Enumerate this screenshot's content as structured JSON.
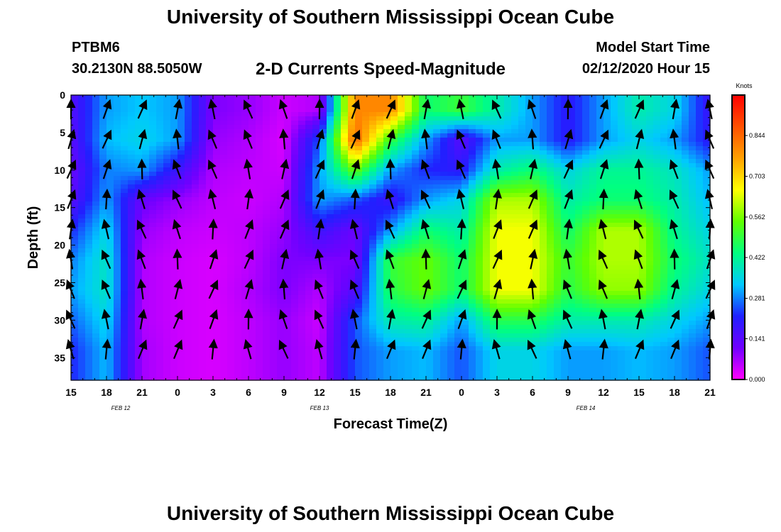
{
  "header": {
    "title": "University of Southern Mississippi Ocean Cube",
    "station_id": "PTBM6",
    "station_coords": "30.2130N 88.5050W",
    "subtitle": "2-D Currents Speed-Magnitude",
    "model_label": "Model Start Time",
    "model_date": "02/12/2020 Hour 15"
  },
  "footer": {
    "title": "University of Southern Mississippi Ocean Cube"
  },
  "chart_data": {
    "type": "heatmap",
    "xlabel": "Forecast Time(Z)",
    "ylabel": "Depth (ft)",
    "x_tick_labels": [
      "15",
      "18",
      "21",
      "0",
      "3",
      "6",
      "9",
      "12",
      "15",
      "18",
      "21",
      "0",
      "3",
      "6",
      "9",
      "12",
      "15",
      "18",
      "21"
    ],
    "date_labels": [
      {
        "label": "FEB 12",
        "at_tick": 1.4
      },
      {
        "label": "FEB 13",
        "at_tick": 7
      },
      {
        "label": "FEB 14",
        "at_tick": 14.5
      }
    ],
    "depth_ticks": [
      0,
      5,
      10,
      15,
      20,
      25,
      30,
      35
    ],
    "ylim": [
      0,
      38
    ],
    "colorbar": {
      "unit": "Knots",
      "tick_labels": [
        "0.844",
        "0.703",
        "0.562",
        "0.422",
        "0.281",
        "0.141",
        "0.000"
      ],
      "max": 0.984,
      "colors": [
        "#ff00ff",
        "#7000ff",
        "#2020ff",
        "#00c8ff",
        "#00ff80",
        "#60ff00",
        "#ffff00",
        "#ffa000",
        "#ff5000",
        "#ff0000"
      ]
    },
    "depths": [
      2,
      6,
      10,
      14,
      18,
      22,
      26,
      30,
      34
    ],
    "times": [
      15,
      18,
      21,
      24,
      27,
      30,
      33,
      36,
      39,
      42,
      45,
      48,
      51,
      54,
      57,
      60,
      63,
      66,
      69
    ],
    "speed": [
      [
        0.15,
        0.3,
        0.33,
        0.3,
        0.1,
        0.08,
        0.04,
        0.06,
        0.8,
        0.8,
        0.45,
        0.5,
        0.4,
        0.3,
        0.2,
        0.3,
        0.4,
        0.35,
        0.18
      ],
      [
        0.14,
        0.32,
        0.35,
        0.3,
        0.08,
        0.06,
        0.03,
        0.25,
        0.85,
        0.5,
        0.3,
        0.14,
        0.3,
        0.3,
        0.2,
        0.3,
        0.35,
        0.3,
        0.2
      ],
      [
        0.12,
        0.28,
        0.3,
        0.18,
        0.06,
        0.05,
        0.04,
        0.3,
        0.55,
        0.3,
        0.22,
        0.2,
        0.4,
        0.45,
        0.35,
        0.42,
        0.42,
        0.38,
        0.3
      ],
      [
        0.14,
        0.3,
        0.12,
        0.08,
        0.05,
        0.04,
        0.06,
        0.3,
        0.25,
        0.18,
        0.3,
        0.35,
        0.6,
        0.6,
        0.4,
        0.45,
        0.45,
        0.4,
        0.32
      ],
      [
        0.22,
        0.35,
        0.08,
        0.05,
        0.04,
        0.05,
        0.08,
        0.18,
        0.12,
        0.3,
        0.45,
        0.4,
        0.65,
        0.65,
        0.45,
        0.6,
        0.6,
        0.42,
        0.35
      ],
      [
        0.28,
        0.38,
        0.06,
        0.04,
        0.03,
        0.05,
        0.1,
        0.1,
        0.1,
        0.5,
        0.55,
        0.45,
        0.65,
        0.65,
        0.5,
        0.6,
        0.6,
        0.45,
        0.38
      ],
      [
        0.3,
        0.38,
        0.06,
        0.04,
        0.03,
        0.06,
        0.1,
        0.06,
        0.15,
        0.48,
        0.55,
        0.45,
        0.65,
        0.65,
        0.48,
        0.58,
        0.58,
        0.42,
        0.35
      ],
      [
        0.26,
        0.35,
        0.06,
        0.04,
        0.03,
        0.05,
        0.08,
        0.04,
        0.25,
        0.4,
        0.42,
        0.3,
        0.48,
        0.48,
        0.4,
        0.4,
        0.4,
        0.35,
        0.3
      ],
      [
        0.22,
        0.32,
        0.07,
        0.04,
        0.03,
        0.05,
        0.08,
        0.05,
        0.25,
        0.3,
        0.32,
        0.25,
        0.35,
        0.35,
        0.3,
        0.3,
        0.32,
        0.3,
        0.25
      ]
    ]
  }
}
